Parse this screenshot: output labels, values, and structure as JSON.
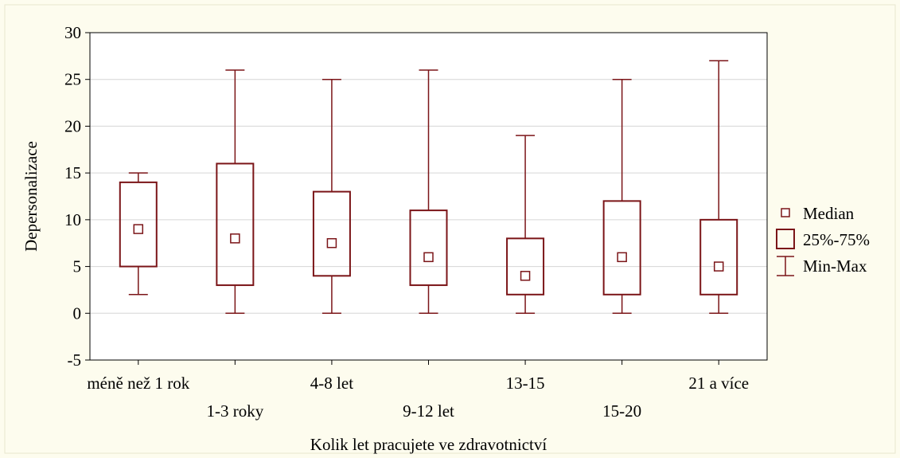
{
  "colors": {
    "background": "#fdfcee",
    "plot_background": "#ffffff",
    "box_stroke": "#7b1518",
    "grid": "#d6d6d6",
    "axis": "#000000"
  },
  "chart_data": {
    "type": "box",
    "xlabel": "Kolik let pracujete ve zdravotnictví",
    "ylabel": "Depersonalizace",
    "ylim": [
      -5,
      30
    ],
    "yticks": [
      -5,
      0,
      5,
      10,
      15,
      20,
      25,
      30
    ],
    "yticks_labels": [
      "-5",
      "0",
      "5",
      "10",
      "15",
      "20",
      "25",
      "30"
    ],
    "grid": true,
    "legend_position": "right",
    "categories": [
      "méně než 1 rok",
      "1-3 roky",
      "4-8 let",
      "9-12 let",
      "13-15",
      "15-20",
      "21 a více"
    ],
    "median": [
      9,
      8,
      7.5,
      6,
      4,
      6,
      5
    ],
    "q1": [
      5,
      3,
      4,
      3,
      2,
      2,
      2
    ],
    "q3": [
      14,
      16,
      13,
      11,
      8,
      12,
      10
    ],
    "min": [
      2,
      0,
      0,
      0,
      0,
      0,
      0
    ],
    "max": [
      15,
      26,
      25,
      26,
      19,
      25,
      27
    ],
    "legend": [
      {
        "key": "median",
        "label": "Median"
      },
      {
        "key": "box",
        "label": "25%-75%"
      },
      {
        "key": "whisker",
        "label": "Min-Max"
      }
    ]
  }
}
